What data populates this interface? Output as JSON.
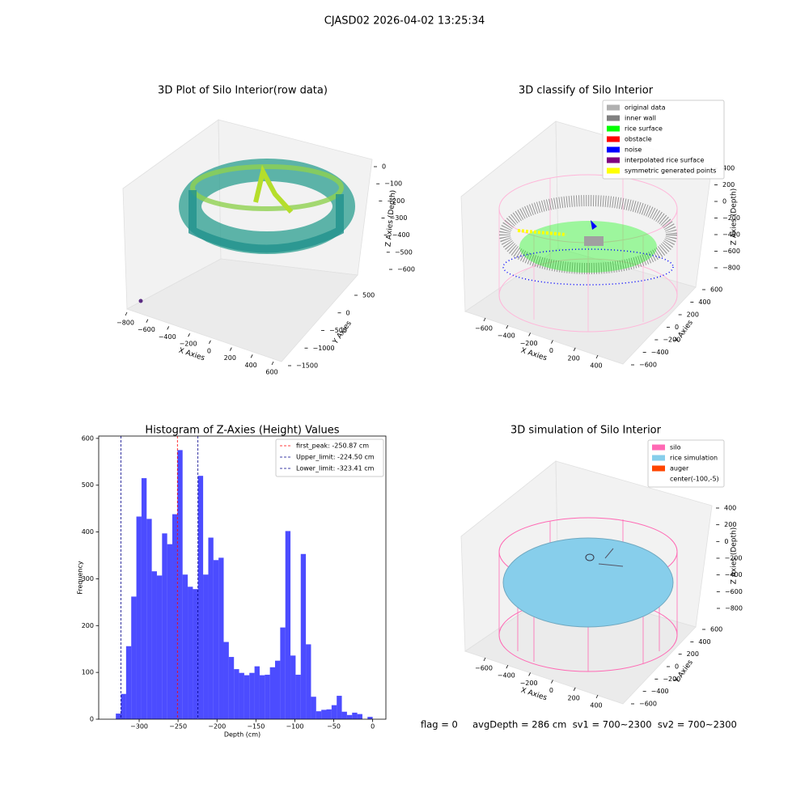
{
  "title": "CJASD02 2026-04-02 13:25:34",
  "footer": "flag = 0     avgDepth = 286 cm  sv1 = 700~2300  sv2 = 700~2300",
  "chart_data": [
    {
      "type": "scatter3d",
      "title": "3D Plot of Silo Interior(row data)",
      "xlabel": "X Axies",
      "ylabel": "Y Axies",
      "zlabel": "Z Axies (Depth)",
      "xticks": [
        {
          "value": -800,
          "label": "−800"
        },
        {
          "value": -600,
          "label": "−600"
        },
        {
          "value": -400,
          "label": "−400"
        },
        {
          "value": -200,
          "label": "−200"
        },
        0,
        200,
        400,
        600
      ],
      "yticks": [
        {
          "value": -1500,
          "label": "−1500"
        },
        {
          "value": -1000,
          "label": "−1000"
        },
        {
          "value": -500,
          "label": "−500"
        },
        0,
        500
      ],
      "zticks": [
        0,
        {
          "value": -100,
          "label": "−100"
        },
        {
          "value": -200,
          "label": "−200"
        },
        {
          "value": -300,
          "label": "−300"
        },
        {
          "value": -400,
          "label": "−400"
        },
        {
          "value": -500,
          "label": "−500"
        },
        {
          "value": -600,
          "label": "−600"
        }
      ]
    },
    {
      "type": "scatter3d",
      "title": "3D classify of Silo Interior",
      "xlabel": "X Axies",
      "ylabel": "Y Axies",
      "zlabel": "Z Axies (Depth)",
      "xticks": [
        {
          "value": -600,
          "label": "−600"
        },
        {
          "value": -400,
          "label": "−400"
        },
        {
          "value": -200,
          "label": "−200"
        },
        0,
        200,
        400
      ],
      "yticks": [
        {
          "value": -600,
          "label": "−600"
        },
        {
          "value": -400,
          "label": "−400"
        },
        {
          "value": -200,
          "label": "−200"
        },
        0,
        200,
        400,
        600
      ],
      "zticks": [
        {
          "value": -800,
          "label": "−800"
        },
        {
          "value": -600,
          "label": "−600"
        },
        {
          "value": -400,
          "label": "−400"
        },
        {
          "value": -200,
          "label": "−200"
        },
        0,
        200,
        400
      ],
      "legend": [
        {
          "name": "original data",
          "color": "#b0b0b0"
        },
        {
          "name": "inner wall",
          "color": "#808080"
        },
        {
          "name": "rice surface",
          "color": "#00ff00"
        },
        {
          "name": "obstacle",
          "color": "#ff0000"
        },
        {
          "name": "noise",
          "color": "#0000ff"
        },
        {
          "name": "interpolated rice surface",
          "color": "#800080"
        },
        {
          "name": "symmetric generated points",
          "color": "#ffff00"
        }
      ]
    },
    {
      "type": "histogram",
      "title": "Histogram of Z-Axies (Height) Values",
      "xlabel": "Depth (cm)",
      "ylabel": "Frequency",
      "color": "#0000ff",
      "legend": "upper right",
      "bins": [
        -330,
        -323.4,
        -316.8,
        -310.2,
        -303.6,
        -297,
        -290.4,
        -283.8,
        -277.2,
        -270.6,
        -264,
        -257.4,
        -250.8,
        -244.2,
        -237.6,
        -231,
        -224.4,
        -217.8,
        -211.2,
        -204.6,
        -198,
        -191.4,
        -184.8,
        -178.2,
        -171.6,
        -165,
        -158.4,
        -151.8,
        -145.2,
        -138.6,
        -132,
        -125.4,
        -118.8,
        -112.2,
        -105.6,
        -99,
        -92.4,
        -85.8,
        -79.2,
        -72.6,
        -66,
        -59.4,
        -52.8,
        -46.2,
        -39.6,
        -33,
        -26.4,
        -19.8,
        -13.2,
        -6.6,
        0
      ],
      "counts": [
        12,
        54,
        156,
        262,
        433,
        515,
        428,
        316,
        307,
        397,
        374,
        438,
        575,
        309,
        283,
        278,
        520,
        309,
        388,
        340,
        345,
        165,
        133,
        107,
        99,
        94,
        99,
        113,
        94,
        95,
        111,
        125,
        196,
        402,
        136,
        95,
        353,
        160,
        48,
        17,
        20,
        21,
        30,
        50,
        16,
        9,
        14,
        11,
        0,
        5
      ],
      "xlim": [
        -352,
        17
      ],
      "ylim": [
        0,
        605
      ],
      "xticks": [
        {
          "value": -300,
          "label": "−300"
        },
        {
          "value": -250,
          "label": "−250"
        },
        {
          "value": -200,
          "label": "−200"
        },
        {
          "value": -150,
          "label": "−150"
        },
        {
          "value": -100,
          "label": "−100"
        },
        {
          "value": -50,
          "label": "−50"
        },
        0
      ],
      "yticks": [
        0,
        100,
        200,
        300,
        400,
        500,
        600
      ],
      "vlines": [
        {
          "label": "first_peak: -250.87 cm",
          "value": -250.87,
          "color": "#ff0000"
        },
        {
          "label": "Upper_limit: -224.50 cm",
          "value": -224.5,
          "color": "#00008b"
        },
        {
          "label": "Lower_limit: -323.41 cm",
          "value": -323.41,
          "color": "#00008b"
        }
      ]
    },
    {
      "type": "scatter3d",
      "title": "3D simulation of Silo Interior",
      "xlabel": "X Axies",
      "ylabel": "Y Axies",
      "zlabel": "Z Axies (Depth)",
      "xticks": [
        {
          "value": -600,
          "label": "−600"
        },
        {
          "value": -400,
          "label": "−400"
        },
        {
          "value": -200,
          "label": "−200"
        },
        0,
        200,
        400
      ],
      "yticks": [
        {
          "value": -600,
          "label": "−600"
        },
        {
          "value": -400,
          "label": "−400"
        },
        {
          "value": -200,
          "label": "−200"
        },
        0,
        200,
        400,
        600
      ],
      "zticks": [
        {
          "value": -800,
          "label": "−800"
        },
        {
          "value": -600,
          "label": "−600"
        },
        {
          "value": -400,
          "label": "−400"
        },
        {
          "value": -200,
          "label": "−200"
        },
        0,
        200,
        400
      ],
      "legend": [
        {
          "name": "silo",
          "color": "#ff69b4"
        },
        {
          "name": "rice simulation",
          "color": "#87ceeb"
        },
        {
          "name": "auger",
          "color": "#ff4500"
        },
        {
          "name": "center(-100,-5)"
        }
      ]
    }
  ]
}
